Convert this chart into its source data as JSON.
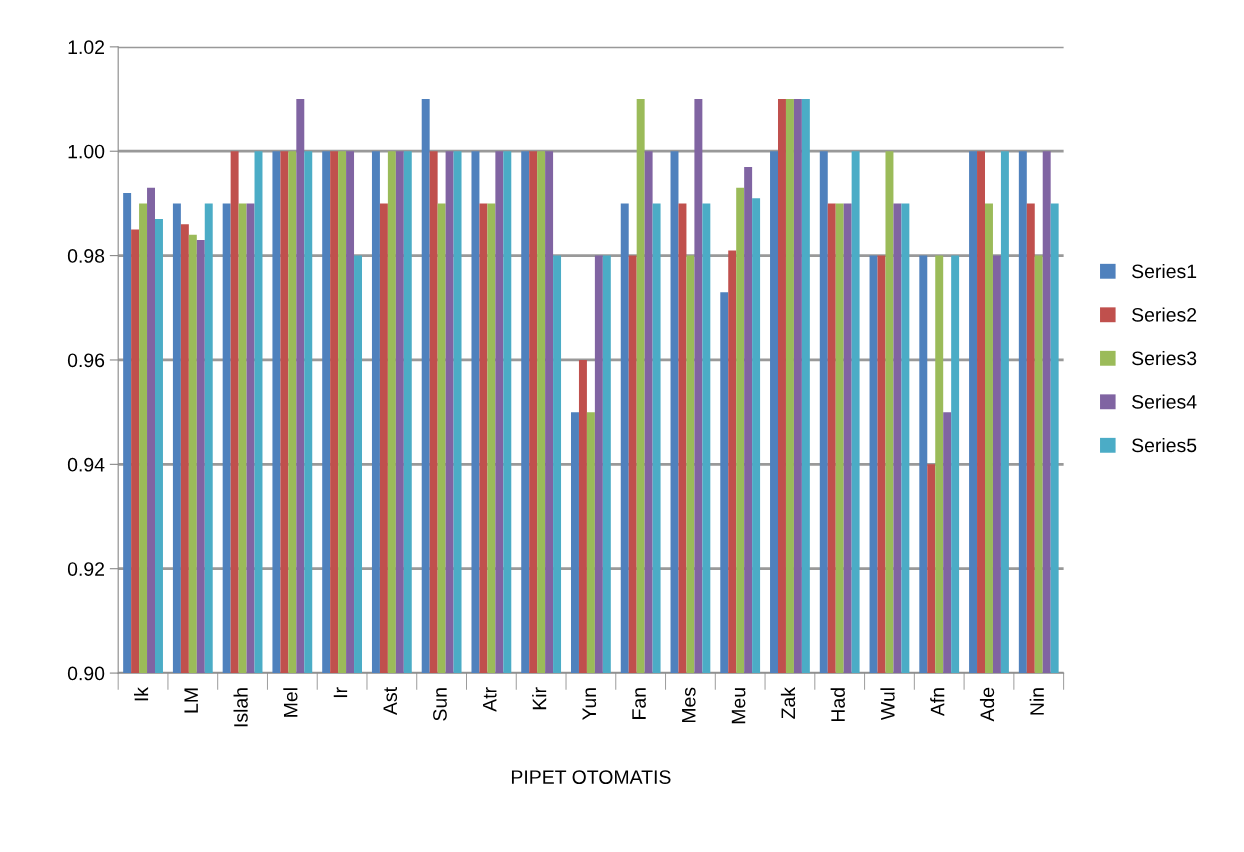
{
  "chart_data": {
    "type": "bar",
    "xlabel": "PIPET OTOMATIS",
    "categories": [
      "Ik",
      "LM",
      "Islah",
      "Mel",
      "Ir",
      "Ast",
      "Sun",
      "Atr",
      "Kir",
      "Yun",
      "Fan",
      "Mes",
      "Meu",
      "Zak",
      "Had",
      "Wul",
      "Afn",
      "Ade",
      "Nin"
    ],
    "series": [
      {
        "name": "Series1",
        "color": "#4f81bd",
        "values": [
          0.992,
          0.99,
          0.99,
          1.0,
          1.0,
          1.0,
          1.01,
          1.0,
          1.0,
          0.95,
          0.99,
          1.0,
          0.973,
          1.0,
          1.0,
          0.98,
          0.98,
          1.0,
          1.0
        ]
      },
      {
        "name": "Series2",
        "color": "#c0504d",
        "values": [
          0.985,
          0.986,
          1.0,
          1.0,
          1.0,
          0.99,
          1.0,
          0.99,
          1.0,
          0.96,
          0.98,
          0.99,
          0.981,
          1.01,
          0.99,
          0.98,
          0.94,
          1.0,
          0.99
        ]
      },
      {
        "name": "Series3",
        "color": "#9bbb59",
        "values": [
          0.99,
          0.984,
          0.99,
          1.0,
          1.0,
          1.0,
          0.99,
          0.99,
          1.0,
          0.95,
          1.01,
          0.98,
          0.993,
          1.01,
          0.99,
          1.0,
          0.98,
          0.99,
          0.98
        ]
      },
      {
        "name": "Series4",
        "color": "#8064a2",
        "values": [
          0.993,
          0.983,
          0.99,
          1.01,
          1.0,
          1.0,
          1.0,
          1.0,
          1.0,
          0.98,
          1.0,
          1.01,
          0.997,
          1.01,
          0.99,
          0.99,
          0.95,
          0.98,
          1.0
        ]
      },
      {
        "name": "Series5",
        "color": "#4bacc6",
        "values": [
          0.987,
          0.99,
          1.0,
          1.0,
          0.98,
          1.0,
          1.0,
          1.0,
          0.98,
          0.98,
          0.99,
          0.99,
          0.991,
          1.01,
          1.0,
          0.99,
          0.98,
          1.0,
          0.99
        ]
      }
    ],
    "ylim": [
      0.9,
      1.02
    ],
    "yticks": [
      {
        "value": 0.9,
        "label": "0.90"
      },
      {
        "value": 0.92,
        "label": "0.92"
      },
      {
        "value": 0.94,
        "label": "0.94"
      },
      {
        "value": 0.96,
        "label": "0.96"
      },
      {
        "value": 0.98,
        "label": "0.98"
      },
      {
        "value": 1.0,
        "label": "1.00"
      },
      {
        "value": 1.02,
        "label": "1.02"
      }
    ],
    "grid": "y",
    "legend": "right"
  }
}
